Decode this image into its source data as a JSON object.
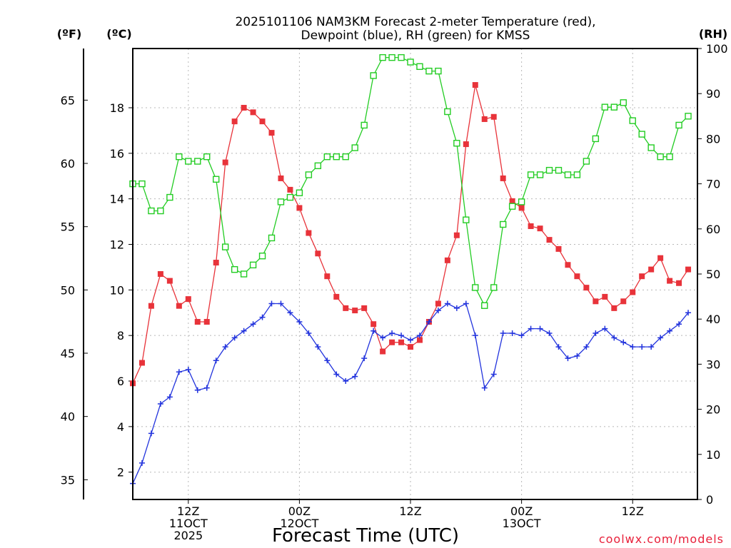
{
  "chart_data": {
    "type": "line",
    "title_line1": "2025101106 NAM3KM Forecast 2-meter Temperature (red),",
    "title_line2": "Dewpoint (blue), RH (green) for KMSS",
    "units": {
      "fahrenheit": "(ºF)",
      "celsius": "(ºC)",
      "rh": "(RH)"
    },
    "xlabel": "Forecast Time (UTC)",
    "credit": "coolwx.com/models",
    "x_range_hours": [
      0,
      61
    ],
    "celsius_range": [
      0.8,
      20.6
    ],
    "rh_range": [
      0,
      100
    ],
    "celsius_ticks": [
      "2",
      "4",
      "6",
      "8",
      "10",
      "12",
      "14",
      "16",
      "18"
    ],
    "fahrenheit_ticks": [
      "35",
      "40",
      "45",
      "50",
      "55",
      "60",
      "65"
    ],
    "rh_ticks": [
      "0",
      "10",
      "20",
      "30",
      "40",
      "50",
      "60",
      "70",
      "80",
      "90",
      "100"
    ],
    "x_ticks": [
      {
        "hour": 6,
        "lines": [
          "12Z",
          "11OCT",
          "2025"
        ]
      },
      {
        "hour": 18,
        "lines": [
          "00Z",
          "12OCT"
        ]
      },
      {
        "hour": 30,
        "lines": [
          "12Z"
        ]
      },
      {
        "hour": 42,
        "lines": [
          "00Z",
          "13OCT"
        ]
      },
      {
        "hour": 54,
        "lines": [
          "12Z"
        ]
      }
    ],
    "series": [
      {
        "name": "2-meter Temperature",
        "color": "#e8333a",
        "marker": "filled-square",
        "axis": "celsius",
        "values": [
          5.9,
          6.8,
          9.3,
          10.7,
          10.4,
          9.3,
          9.6,
          8.6,
          8.6,
          11.2,
          15.6,
          17.4,
          18.0,
          17.8,
          17.4,
          16.9,
          14.9,
          14.4,
          13.6,
          12.5,
          11.6,
          10.6,
          9.7,
          9.2,
          9.1,
          9.2,
          8.5,
          7.3,
          7.7,
          7.7,
          7.5,
          7.8,
          8.6,
          9.4,
          11.3,
          12.4,
          16.4,
          19.0,
          17.5,
          17.6,
          14.9,
          13.9,
          13.6,
          12.8,
          12.7,
          12.2,
          11.8,
          11.1,
          10.6,
          10.1,
          9.5,
          9.7,
          9.2,
          9.5,
          9.9,
          10.6,
          10.9,
          11.4,
          10.4,
          10.3,
          10.9
        ]
      },
      {
        "name": "Dewpoint",
        "color": "#2233dd",
        "marker": "plus",
        "axis": "celsius",
        "values": [
          1.5,
          2.4,
          3.7,
          5.0,
          5.3,
          6.4,
          6.5,
          5.6,
          5.7,
          6.9,
          7.5,
          7.9,
          8.2,
          8.5,
          8.8,
          9.4,
          9.4,
          9.0,
          8.6,
          8.1,
          7.5,
          6.9,
          6.3,
          6.0,
          6.2,
          7.0,
          8.2,
          7.9,
          8.1,
          8.0,
          7.8,
          8.0,
          8.6,
          9.1,
          9.4,
          9.2,
          9.4,
          8.0,
          5.7,
          6.3,
          8.1,
          8.1,
          8.0,
          8.3,
          8.3,
          8.1,
          7.5,
          7.0,
          7.1,
          7.5,
          8.1,
          8.3,
          7.9,
          7.7,
          7.5,
          7.5,
          7.5,
          7.9,
          8.2,
          8.5,
          9.0
        ]
      },
      {
        "name": "RH",
        "color": "#22cc22",
        "marker": "open-square",
        "axis": "rh",
        "values": [
          70,
          70,
          64,
          64,
          67,
          76,
          75,
          75,
          76,
          71,
          56,
          51,
          50,
          52,
          54,
          58,
          66,
          67,
          68,
          72,
          74,
          76,
          76,
          76,
          78,
          83,
          94,
          98,
          98,
          98,
          97,
          96,
          95,
          95,
          86,
          79,
          62,
          47,
          43,
          47,
          61,
          65,
          66,
          72,
          72,
          73,
          73,
          72,
          72,
          75,
          80,
          87,
          87,
          88,
          84,
          81,
          78,
          76,
          76,
          83,
          85
        ]
      }
    ]
  }
}
